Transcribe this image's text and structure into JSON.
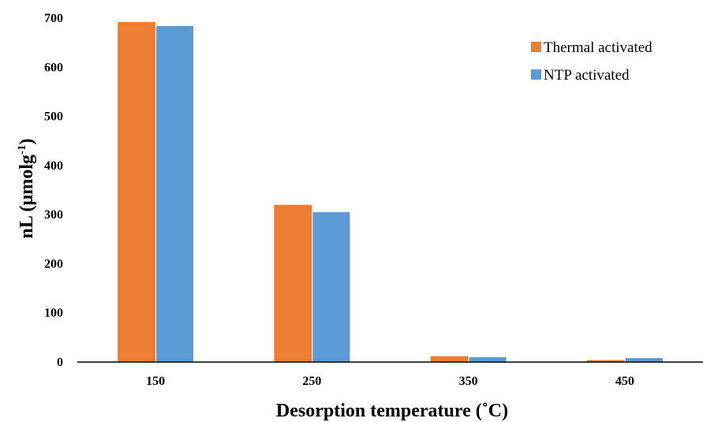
{
  "chart_data": {
    "type": "bar",
    "categories": [
      "150",
      "250",
      "350",
      "450"
    ],
    "series": [
      {
        "name": "Thermal activated",
        "color": "#ED7D31",
        "values": [
          692,
          320,
          12,
          4
        ]
      },
      {
        "name": "NTP activated",
        "color": "#5B9BD5",
        "values": [
          684,
          305,
          10,
          8
        ]
      }
    ],
    "xlabel": "Desorption temperature (˚C)",
    "ylabel_main": "nL (µmolg",
    "ylabel_sup": "-1",
    "ylabel_end": ")",
    "ylim": [
      0,
      700
    ],
    "yticks": [
      "0",
      "100",
      "200",
      "300",
      "400",
      "500",
      "600",
      "700"
    ],
    "grid": false,
    "legend_position": "top-right"
  }
}
